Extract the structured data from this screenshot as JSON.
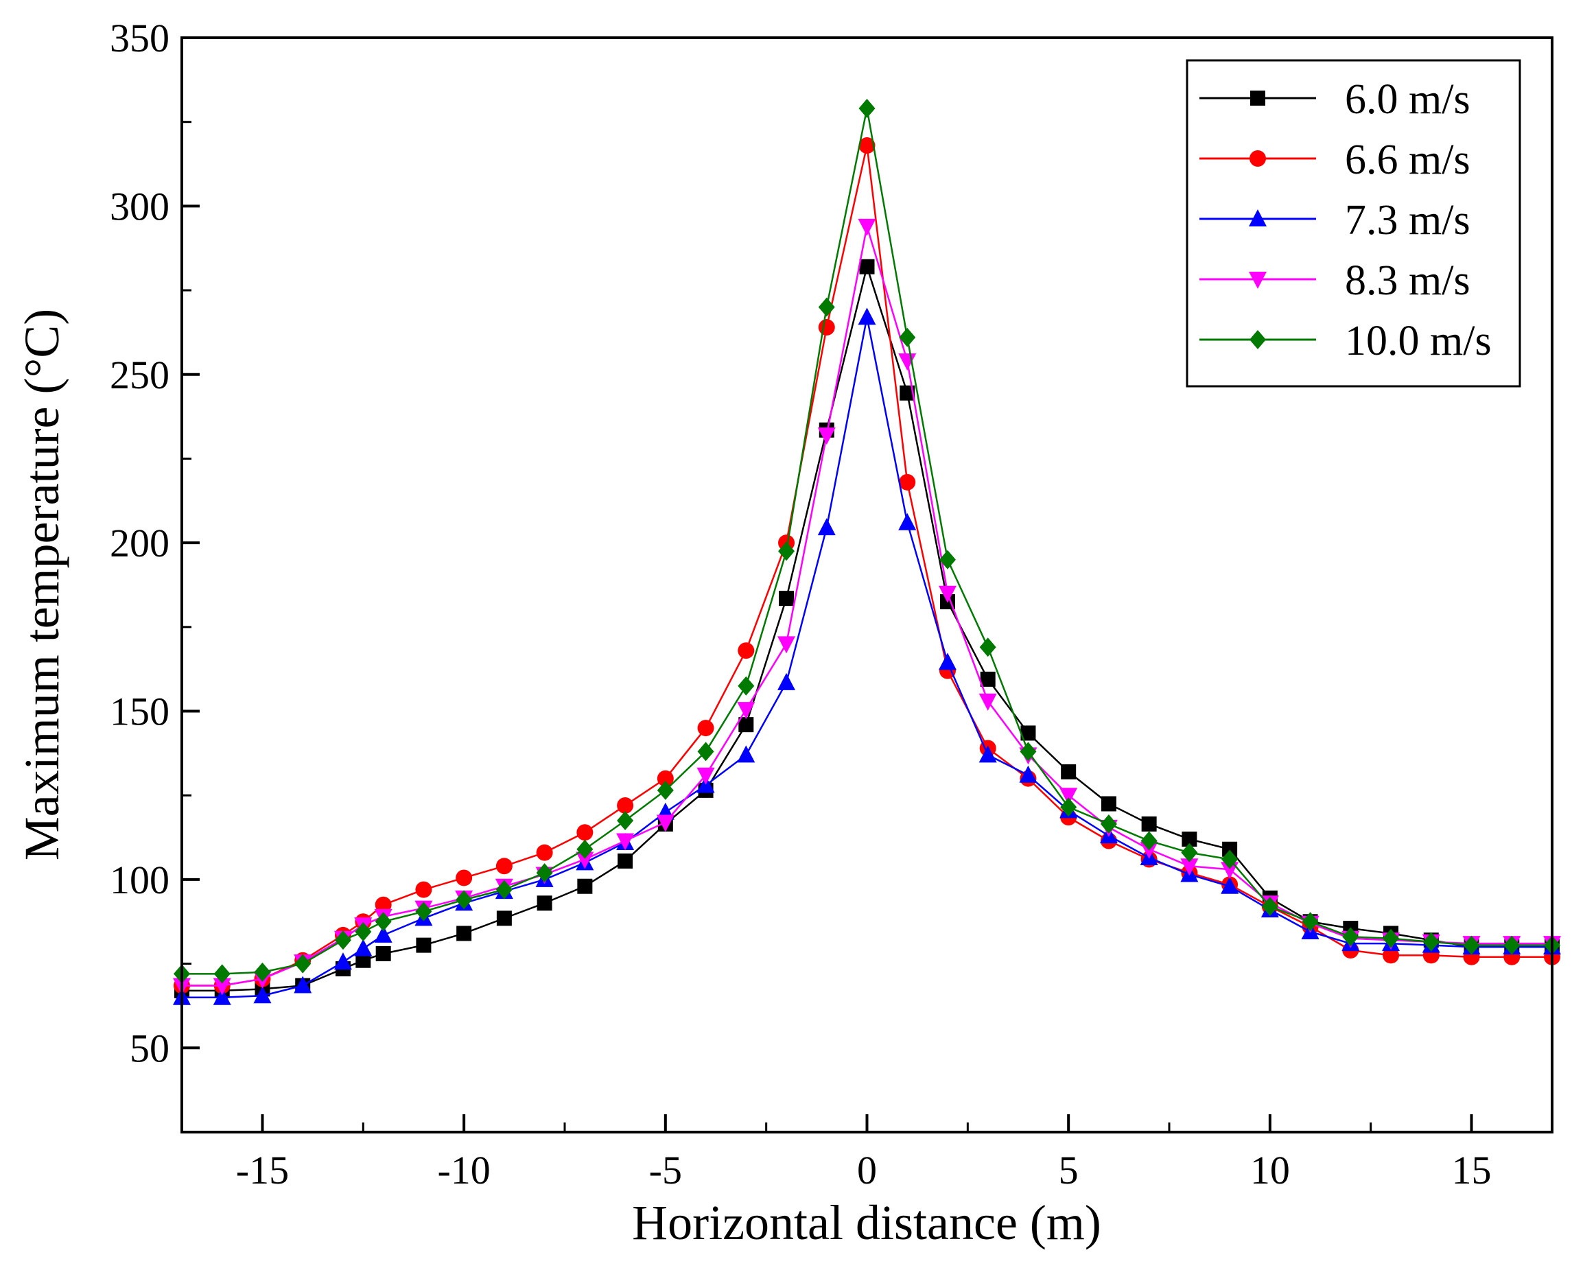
{
  "chart_data": {
    "type": "line",
    "title": "",
    "xlabel": "Horizontal distance (m)",
    "ylabel": "Maximum temperature (°C)",
    "xlim": [
      -17,
      17
    ],
    "ylim": [
      25,
      350
    ],
    "xticks": [
      -15,
      -10,
      -5,
      0,
      5,
      10,
      15
    ],
    "yticks": [
      50,
      100,
      150,
      200,
      250,
      300,
      350
    ],
    "xtick_labels": [
      "-15",
      "-10",
      "-5",
      "0",
      "5",
      "10",
      "15"
    ],
    "ytick_labels": [
      "50",
      "100",
      "150",
      "200",
      "250",
      "300",
      "350"
    ],
    "legend_position": "top-right",
    "x": [
      -17,
      -16,
      -15,
      -14,
      -13,
      -12.5,
      -12,
      -11,
      -10,
      -9,
      -8,
      -7,
      -6,
      -5,
      -4,
      -3,
      -2,
      -1,
      0,
      1,
      2,
      3,
      4,
      5,
      6,
      7,
      8,
      9,
      10,
      11,
      12,
      13,
      14,
      15,
      16,
      17
    ],
    "series": [
      {
        "name": "6.0 m/s",
        "color": "#000000",
        "marker": "square",
        "values": [
          67,
          67,
          67.5,
          68.5,
          73.5,
          76,
          78,
          80.5,
          84,
          88.5,
          93,
          98,
          105.5,
          116.5,
          126.5,
          146,
          183.5,
          233.5,
          282,
          244.5,
          182.5,
          159.5,
          143.5,
          132,
          122.5,
          116.5,
          112,
          109,
          94.5,
          87.5,
          85.5,
          84,
          82,
          80,
          80,
          80
        ]
      },
      {
        "name": "6.6 m/s",
        "color": "#ff0000",
        "marker": "circle",
        "values": [
          68.5,
          68.5,
          70.5,
          76,
          83.5,
          87.5,
          92.5,
          97,
          100.5,
          104,
          108,
          114,
          122,
          130,
          145,
          168,
          200,
          264,
          318,
          218,
          162,
          139,
          130,
          118.5,
          111.5,
          106,
          102,
          98.5,
          92,
          86,
          79,
          77.5,
          77.5,
          77,
          77,
          77
        ]
      },
      {
        "name": "7.3 m/s",
        "color": "#0000ff",
        "marker": "triangle-up",
        "values": [
          65,
          65,
          65.5,
          68.5,
          75.5,
          79.5,
          83.5,
          88.5,
          93,
          96.5,
          100,
          105,
          111,
          120,
          128,
          137,
          158.5,
          204.5,
          267,
          206,
          164.5,
          137,
          131,
          120.5,
          113,
          106.5,
          101.5,
          98,
          91,
          84.5,
          81,
          81,
          80.5,
          80,
          80,
          80
        ]
      },
      {
        "name": "8.3 m/s",
        "color": "#ff00ff",
        "marker": "triangle-down",
        "values": [
          68.5,
          68.5,
          70.5,
          75.5,
          82.5,
          86.5,
          89,
          91.5,
          94.5,
          98,
          101.5,
          106,
          111.5,
          117,
          131,
          150.5,
          170,
          232,
          294,
          254,
          185,
          153,
          137,
          125,
          115.5,
          109,
          104,
          103,
          93,
          87,
          82.5,
          82,
          81.5,
          81,
          81,
          81
        ]
      },
      {
        "name": "10.0 m/s",
        "color": "#007a00",
        "marker": "diamond",
        "values": [
          72,
          72,
          72.5,
          75,
          82,
          84.5,
          87.5,
          90.5,
          94,
          97,
          102,
          109,
          117.5,
          126.5,
          138,
          157.5,
          197.5,
          270,
          329,
          261,
          195,
          169,
          138,
          121.5,
          116.5,
          111.5,
          108,
          106,
          92,
          87.5,
          83,
          82.5,
          81.5,
          80.5,
          80.5,
          80.5
        ]
      }
    ]
  }
}
